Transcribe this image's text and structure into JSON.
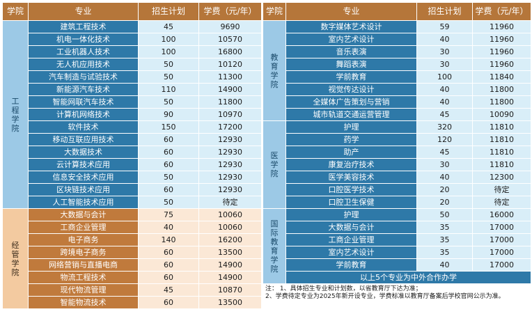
{
  "headers": {
    "college": "学院",
    "major": "专业",
    "quota": "招生计划",
    "fee": "学费（元/年）"
  },
  "left": {
    "engineering": {
      "name": "工程学院",
      "rows": [
        {
          "major": "建筑工程技术",
          "quota": "45",
          "fee": "9690"
        },
        {
          "major": "机电一体化技术",
          "quota": "100",
          "fee": "10570"
        },
        {
          "major": "工业机器人技术",
          "quota": "100",
          "fee": "16800"
        },
        {
          "major": "无人机应用技术",
          "quota": "50",
          "fee": "10120"
        },
        {
          "major": "汽车制造与试验技术",
          "quota": "50",
          "fee": "11300"
        },
        {
          "major": "新能源汽车技术",
          "quota": "110",
          "fee": "14900"
        },
        {
          "major": "智能网联汽车技术",
          "quota": "50",
          "fee": "11800"
        },
        {
          "major": "计算机网络技术",
          "quota": "90",
          "fee": "10970"
        },
        {
          "major": "软件技术",
          "quota": "150",
          "fee": "17200"
        },
        {
          "major": "移动互联应用技术",
          "quota": "60",
          "fee": "12930"
        },
        {
          "major": "大数据技术",
          "quota": "60",
          "fee": "12930"
        },
        {
          "major": "云计算技术应用",
          "quota": "60",
          "fee": "12930"
        },
        {
          "major": "信息安全技术应用",
          "quota": "50",
          "fee": "12930"
        },
        {
          "major": "区块链技术应用",
          "quota": "60",
          "fee": "12930"
        },
        {
          "major": "人工智能技术应用",
          "quota": "50",
          "fee": "待定"
        }
      ]
    },
    "management": {
      "name": "经管学院",
      "rows": [
        {
          "major": "大数据与会计",
          "quota": "75",
          "fee": "10060"
        },
        {
          "major": "工商企业管理",
          "quota": "40",
          "fee": "10060"
        },
        {
          "major": "电子商务",
          "quota": "140",
          "fee": "16200"
        },
        {
          "major": "跨境电子商务",
          "quota": "60",
          "fee": "13500"
        },
        {
          "major": "网络营销与直播电商",
          "quota": "60",
          "fee": "14900"
        },
        {
          "major": "物流工程技术",
          "quota": "60",
          "fee": "14900"
        },
        {
          "major": "现代物流管理",
          "quota": "45",
          "fee": "10870"
        },
        {
          "major": "智能物流技术",
          "quota": "60",
          "fee": "13500"
        }
      ]
    }
  },
  "right": {
    "education": {
      "name": "教育学院",
      "rows": [
        {
          "major": "数字媒体艺术设计",
          "quota": "59",
          "fee": "11960"
        },
        {
          "major": "室内艺术设计",
          "quota": "40",
          "fee": "11960"
        },
        {
          "major": "音乐表演",
          "quota": "30",
          "fee": "11960"
        },
        {
          "major": "舞蹈表演",
          "quota": "30",
          "fee": "11960"
        },
        {
          "major": "学前教育",
          "quota": "100",
          "fee": "11840"
        },
        {
          "major": "视觉传达设计",
          "quota": "40",
          "fee": "11800"
        },
        {
          "major": "全媒体广告策划与营销",
          "quota": "40",
          "fee": "11800"
        },
        {
          "major": "城市轨道交通运营管理",
          "quota": "45",
          "fee": "10090"
        }
      ]
    },
    "medical": {
      "name": "医学院",
      "rows": [
        {
          "major": "护理",
          "quota": "320",
          "fee": "11810"
        },
        {
          "major": "药学",
          "quota": "120",
          "fee": "11810"
        },
        {
          "major": "助产",
          "quota": "45",
          "fee": "11810"
        },
        {
          "major": "康复治疗技术",
          "quota": "30",
          "fee": "11810"
        },
        {
          "major": "医学美容技术",
          "quota": "40",
          "fee": "12300"
        },
        {
          "major": "口腔医学技术",
          "quota": "20",
          "fee": "待定"
        },
        {
          "major": "口腔卫生保健",
          "quota": "20",
          "fee": "待定"
        }
      ]
    },
    "international": {
      "name": "国际教育学院",
      "rows": [
        {
          "major": "护理",
          "quota": "50",
          "fee": "16000"
        },
        {
          "major": "大数据与会计",
          "quota": "35",
          "fee": "17000"
        },
        {
          "major": "工商企业管理",
          "quota": "35",
          "fee": "17000"
        },
        {
          "major": "室内艺术设计",
          "quota": "35",
          "fee": "17000"
        },
        {
          "major": "学前教育",
          "quota": "40",
          "fee": "17000"
        }
      ],
      "sino_foreign": "以上5个专业为中外合作办学"
    },
    "notes": {
      "label": "注：",
      "line1": "1、具体招生专业和计划数，以省教育厅下达为准；",
      "line2": "2、学费待定专业为2025年新开设专业，学费标准以教育厅备案后学校官网公示为准。"
    }
  }
}
